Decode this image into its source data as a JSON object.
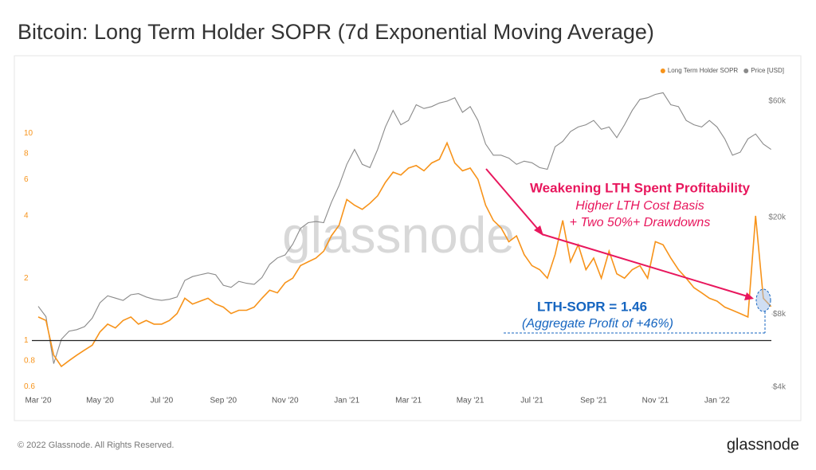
{
  "chart_data": {
    "type": "line",
    "title": "Bitcoin: Long Term Holder SOPR (7d Exponential Moving Average)",
    "watermark": "glassnode",
    "footer": "© 2022 Glassnode. All Rights Reserved.",
    "brand": "glassnode",
    "categories": [
      "Mar '20",
      null,
      null,
      null,
      null,
      null,
      null,
      null,
      "May '20",
      null,
      null,
      null,
      null,
      null,
      null,
      null,
      "Jul '20",
      null,
      null,
      null,
      null,
      null,
      null,
      null,
      "Sep '20",
      null,
      null,
      null,
      null,
      null,
      null,
      null,
      "Nov '20",
      null,
      null,
      null,
      null,
      null,
      null,
      null,
      "Jan '21",
      null,
      null,
      null,
      null,
      null,
      null,
      null,
      "Mar '21",
      null,
      null,
      null,
      null,
      null,
      null,
      null,
      "May '21",
      null,
      null,
      null,
      null,
      null,
      null,
      null,
      "Jul '21",
      null,
      null,
      null,
      null,
      null,
      null,
      null,
      "Sep '21",
      null,
      null,
      null,
      null,
      null,
      null,
      null,
      "Nov '21",
      null,
      null,
      null,
      null,
      null,
      null,
      null,
      "Jan '22",
      null,
      null,
      null,
      null,
      null,
      null,
      null
    ],
    "series": [
      {
        "name": "Long Term Holder SOPR",
        "color": "#f7931a",
        "axis": "y",
        "values": [
          1.3,
          1.25,
          0.85,
          0.75,
          0.8,
          0.85,
          0.9,
          0.95,
          1.1,
          1.2,
          1.15,
          1.25,
          1.3,
          1.2,
          1.25,
          1.2,
          1.2,
          1.25,
          1.35,
          1.6,
          1.5,
          1.55,
          1.6,
          1.5,
          1.45,
          1.35,
          1.4,
          1.4,
          1.45,
          1.6,
          1.75,
          1.7,
          1.9,
          2.0,
          2.3,
          2.4,
          2.5,
          2.7,
          3.2,
          3.6,
          4.8,
          4.5,
          4.3,
          4.6,
          5.0,
          5.8,
          6.5,
          6.3,
          6.8,
          7.0,
          6.6,
          7.2,
          7.5,
          9.0,
          7.2,
          6.6,
          6.8,
          6.0,
          4.5,
          3.8,
          3.5,
          3.0,
          3.2,
          2.6,
          2.3,
          2.2,
          2.0,
          2.6,
          3.8,
          2.4,
          2.9,
          2.2,
          2.5,
          2.0,
          2.7,
          2.1,
          2.0,
          2.2,
          2.3,
          2.0,
          3.0,
          2.9,
          2.5,
          2.2,
          2.0,
          1.8,
          1.7,
          1.6,
          1.55,
          1.45,
          1.4,
          1.35,
          1.3,
          4.0,
          1.6,
          1.46
        ]
      },
      {
        "name": "Price [USD]",
        "color": "#8a8a8a",
        "axis": "y2",
        "values": [
          8600,
          7800,
          5000,
          6300,
          6800,
          6900,
          7100,
          7700,
          8900,
          9500,
          9300,
          9100,
          9600,
          9700,
          9400,
          9200,
          9100,
          9200,
          9400,
          11000,
          11400,
          11600,
          11800,
          11600,
          10500,
          10300,
          10900,
          10700,
          10600,
          11300,
          12800,
          13600,
          14000,
          15500,
          18000,
          19000,
          19200,
          19000,
          23000,
          27000,
          33000,
          38000,
          33000,
          32000,
          38000,
          47000,
          55000,
          48000,
          50000,
          58000,
          56000,
          57000,
          59000,
          60000,
          62000,
          54000,
          57000,
          50000,
          40000,
          36000,
          36000,
          35000,
          33000,
          34000,
          33500,
          32000,
          31500,
          39000,
          41000,
          45000,
          47000,
          48000,
          50000,
          46000,
          47000,
          42500,
          48000,
          55000,
          61000,
          62000,
          64000,
          65000,
          58000,
          57000,
          50000,
          48000,
          47000,
          50000,
          47000,
          42000,
          36000,
          37000,
          42000,
          44000,
          40000,
          38000
        ]
      }
    ],
    "ylim": [
      0.55,
      19
    ],
    "yticks": [
      0.6,
      0.8,
      1,
      2,
      4,
      6,
      8,
      10
    ],
    "log_y": true,
    "y2lim": [
      3740,
      76400
    ],
    "y2ticks": [
      {
        "value": 4000,
        "label": "$4k"
      },
      {
        "value": 8000,
        "label": "$8k"
      },
      {
        "value": 20000,
        "label": "$20k"
      },
      {
        "value": 60000,
        "label": "$60k"
      }
    ],
    "log_y2": true,
    "reference_line": 1,
    "legend": "top-right",
    "annotations": [
      "Weakening  LTH Spent Profitability",
      "Higher LTH Cost Basis",
      "+ Two 50%+ Drawdowns",
      "LTH-SOPR = 1.46",
      "(Aggregate Profit of +46%)"
    ]
  }
}
